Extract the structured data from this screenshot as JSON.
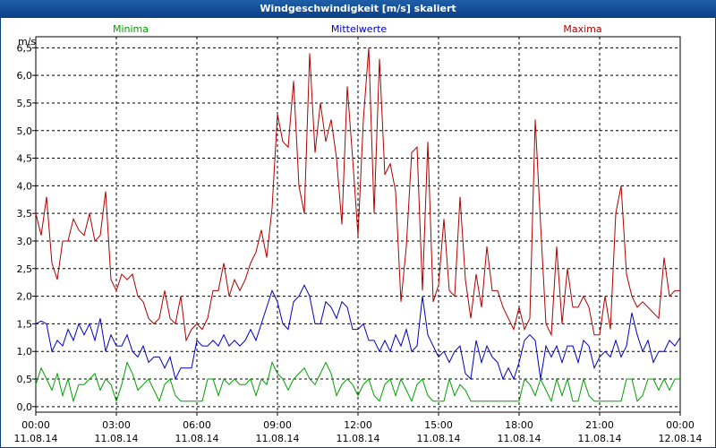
{
  "window": {
    "title": "Windgeschwindigkeit [m/s] skaliert"
  },
  "chart_data": {
    "type": "line",
    "title": "Windgeschwindigkeit [m/s] skaliert",
    "ylabel": "m/s",
    "xlabel": "",
    "ylim": [
      -0.1,
      6.7
    ],
    "grid": true,
    "yticks": [
      "0,0",
      "0,5",
      "1,0",
      "1,5",
      "2,0",
      "2,5",
      "3,0",
      "3,5",
      "4,0",
      "4,5",
      "5,0",
      "5,5",
      "6,0",
      "6,5"
    ],
    "yticks_values": [
      0,
      0.5,
      1,
      1.5,
      2,
      2.5,
      3,
      3.5,
      4,
      4.5,
      5,
      5.5,
      6,
      6.5
    ],
    "xticks": [
      {
        "time": "00:00",
        "date": "11.08.14"
      },
      {
        "time": "03:00",
        "date": "11.08.14"
      },
      {
        "time": "06:00",
        "date": "11.08.14"
      },
      {
        "time": "09:00",
        "date": "11.08.14"
      },
      {
        "time": "12:00",
        "date": "11.08.14"
      },
      {
        "time": "15:00",
        "date": "11.08.14"
      },
      {
        "time": "18:00",
        "date": "11.08.14"
      },
      {
        "time": "21:00",
        "date": "11.08.14"
      },
      {
        "time": "00:00",
        "date": "12.08.14"
      }
    ],
    "x_hours_range": [
      0,
      24
    ],
    "series": [
      {
        "name": "Minima",
        "color": "#00a000",
        "x": [
          0,
          0.2,
          0.4,
          0.6,
          0.8,
          1,
          1.2,
          1.4,
          1.6,
          1.8,
          2,
          2.2,
          2.4,
          2.6,
          2.8,
          3,
          3.2,
          3.4,
          3.6,
          3.8,
          4,
          4.2,
          4.4,
          4.6,
          4.8,
          5,
          5.2,
          5.4,
          5.6,
          5.8,
          6,
          6.2,
          6.4,
          6.6,
          6.8,
          7,
          7.2,
          7.4,
          7.6,
          7.8,
          8,
          8.2,
          8.4,
          8.6,
          8.8,
          9,
          9.2,
          9.4,
          9.6,
          9.8,
          10,
          10.2,
          10.4,
          10.6,
          10.8,
          11,
          11.2,
          11.4,
          11.6,
          11.8,
          12,
          12.2,
          12.4,
          12.6,
          12.8,
          13,
          13.2,
          13.4,
          13.6,
          13.8,
          14,
          14.2,
          14.4,
          14.6,
          14.8,
          15,
          15.2,
          15.4,
          15.6,
          15.8,
          16,
          16.2,
          16.4,
          16.6,
          16.8,
          17,
          17.2,
          17.4,
          17.6,
          17.8,
          18,
          18.2,
          18.4,
          18.6,
          18.8,
          19,
          19.2,
          19.4,
          19.6,
          19.8,
          20,
          20.2,
          20.4,
          20.6,
          20.8,
          21,
          21.2,
          21.4,
          21.6,
          21.8,
          22,
          22.2,
          22.4,
          22.6,
          22.8,
          23,
          23.2,
          23.4,
          23.6,
          23.8,
          24
        ],
        "values": [
          0.4,
          0.7,
          0.5,
          0.3,
          0.6,
          0.2,
          0.5,
          0.1,
          0.4,
          0.4,
          0.5,
          0.6,
          0.3,
          0.5,
          0.4,
          0.1,
          0.4,
          0.8,
          0.6,
          0.3,
          0.4,
          0.5,
          0.3,
          0.1,
          0.4,
          0.5,
          0.2,
          0.1,
          0.1,
          0.1,
          0.1,
          0.1,
          0.5,
          0.5,
          0.2,
          0.5,
          0.4,
          0.5,
          0.4,
          0.4,
          0.5,
          0.2,
          0.5,
          0.4,
          0.8,
          0.6,
          0.5,
          0.3,
          0.5,
          0.6,
          0.7,
          0.5,
          0.4,
          0.6,
          0.8,
          0.6,
          0.2,
          0.4,
          0.5,
          0.4,
          0.2,
          0.4,
          0.5,
          0.2,
          0.1,
          0.4,
          0.5,
          0.2,
          0.5,
          0.3,
          0.1,
          0.4,
          0.5,
          0.2,
          0.1,
          0.1,
          0.1,
          0.5,
          0.2,
          0.4,
          0.3,
          0.1,
          0.1,
          0.1,
          0.1,
          0.1,
          0.1,
          0.1,
          0.1,
          0.1,
          0.1,
          0.5,
          0.4,
          0.2,
          0.5,
          0.3,
          0.1,
          0.5,
          0.2,
          0.5,
          0.1,
          0.1,
          0.5,
          0.2,
          0.1,
          0.1,
          0.1,
          0.1,
          0.1,
          0.1,
          0.5,
          0.5,
          0.1,
          0.2,
          0.5,
          0.5,
          0.3,
          0.5,
          0.3,
          0.5,
          0.5
        ]
      },
      {
        "name": "Mittelwerte",
        "color": "#0000c0",
        "x": [
          0,
          0.2,
          0.4,
          0.6,
          0.8,
          1,
          1.2,
          1.4,
          1.6,
          1.8,
          2,
          2.2,
          2.4,
          2.6,
          2.8,
          3,
          3.2,
          3.4,
          3.6,
          3.8,
          4,
          4.2,
          4.4,
          4.6,
          4.8,
          5,
          5.2,
          5.4,
          5.6,
          5.8,
          6,
          6.2,
          6.4,
          6.6,
          6.8,
          7,
          7.2,
          7.4,
          7.6,
          7.8,
          8,
          8.2,
          8.4,
          8.6,
          8.8,
          9,
          9.2,
          9.4,
          9.6,
          9.8,
          10,
          10.2,
          10.4,
          10.6,
          10.8,
          11,
          11.2,
          11.4,
          11.6,
          11.8,
          12,
          12.2,
          12.4,
          12.6,
          12.8,
          13,
          13.2,
          13.4,
          13.6,
          13.8,
          14,
          14.2,
          14.4,
          14.6,
          14.8,
          15,
          15.2,
          15.4,
          15.6,
          15.8,
          16,
          16.2,
          16.4,
          16.6,
          16.8,
          17,
          17.2,
          17.4,
          17.6,
          17.8,
          18,
          18.2,
          18.4,
          18.6,
          18.8,
          19,
          19.2,
          19.4,
          19.6,
          19.8,
          20,
          20.2,
          20.4,
          20.6,
          20.8,
          21,
          21.2,
          21.4,
          21.6,
          21.8,
          22,
          22.2,
          22.4,
          22.6,
          22.8,
          23,
          23.2,
          23.4,
          23.6,
          23.8,
          24
        ],
        "values": [
          1.5,
          1.55,
          1.5,
          1.0,
          1.2,
          1.1,
          1.4,
          1.2,
          1.5,
          1.3,
          1.5,
          1.2,
          1.6,
          1.0,
          1.3,
          1.1,
          1.1,
          1.3,
          1.0,
          0.9,
          1.1,
          0.8,
          0.9,
          0.9,
          0.7,
          0.9,
          0.5,
          0.7,
          0.7,
          0.7,
          1.2,
          1.1,
          1.1,
          1.2,
          1.1,
          1.3,
          1.1,
          1.2,
          1.1,
          1.2,
          1.4,
          1.2,
          1.5,
          1.8,
          2.1,
          1.9,
          1.5,
          1.4,
          1.9,
          2.0,
          2.2,
          2.0,
          1.5,
          1.5,
          1.9,
          1.8,
          1.6,
          1.9,
          1.8,
          1.4,
          1.4,
          1.5,
          1.2,
          1.2,
          1.0,
          1.2,
          1.0,
          1.3,
          1.1,
          1.4,
          1.0,
          1.1,
          2.0,
          1.3,
          1.1,
          0.9,
          1.0,
          0.8,
          1.0,
          1.1,
          0.6,
          0.5,
          1.2,
          0.8,
          1.1,
          0.9,
          0.8,
          0.5,
          0.7,
          0.5,
          0.8,
          1.2,
          1.3,
          1.2,
          0.5,
          1.1,
          0.9,
          1.1,
          0.8,
          1.1,
          1.1,
          0.8,
          1.2,
          1.1,
          0.7,
          0.9,
          1.0,
          0.9,
          1.2,
          0.9,
          1.1,
          1.7,
          1.3,
          1.0,
          1.2,
          0.8,
          1.0,
          1.0,
          1.2,
          1.1,
          1.25
        ]
      },
      {
        "name": "Maxima",
        "color": "#b00000",
        "x": [
          0,
          0.2,
          0.4,
          0.6,
          0.8,
          1,
          1.2,
          1.4,
          1.6,
          1.8,
          2,
          2.2,
          2.4,
          2.6,
          2.8,
          3,
          3.2,
          3.4,
          3.6,
          3.8,
          4,
          4.2,
          4.4,
          4.6,
          4.8,
          5,
          5.2,
          5.4,
          5.6,
          5.8,
          6,
          6.2,
          6.4,
          6.6,
          6.8,
          7,
          7.2,
          7.4,
          7.6,
          7.8,
          8,
          8.2,
          8.4,
          8.6,
          8.8,
          9,
          9.2,
          9.4,
          9.6,
          9.8,
          10,
          10.2,
          10.4,
          10.6,
          10.8,
          11,
          11.2,
          11.4,
          11.6,
          11.8,
          12,
          12.2,
          12.4,
          12.6,
          12.8,
          13,
          13.2,
          13.4,
          13.6,
          13.8,
          14,
          14.2,
          14.4,
          14.6,
          14.8,
          15,
          15.2,
          15.4,
          15.6,
          15.8,
          16,
          16.2,
          16.4,
          16.6,
          16.8,
          17,
          17.2,
          17.4,
          17.6,
          17.8,
          18,
          18.2,
          18.4,
          18.6,
          18.8,
          19,
          19.2,
          19.4,
          19.6,
          19.8,
          20,
          20.2,
          20.4,
          20.6,
          20.8,
          21,
          21.2,
          21.4,
          21.6,
          21.8,
          22,
          22.2,
          22.4,
          22.6,
          22.8,
          23,
          23.2,
          23.4,
          23.6,
          23.8,
          24
        ],
        "values": [
          3.5,
          3.1,
          3.8,
          2.6,
          2.3,
          3.0,
          3.0,
          3.4,
          3.2,
          3.1,
          3.5,
          3.0,
          3.1,
          3.9,
          2.3,
          2.1,
          2.4,
          2.3,
          2.4,
          2.0,
          1.9,
          1.6,
          1.5,
          1.6,
          2.1,
          1.6,
          1.5,
          2.0,
          1.2,
          1.4,
          1.5,
          1.4,
          1.6,
          2.1,
          2.1,
          2.6,
          2.0,
          2.3,
          2.1,
          2.3,
          2.6,
          2.8,
          3.2,
          2.7,
          3.6,
          5.3,
          4.8,
          4.7,
          5.9,
          4.0,
          3.5,
          6.4,
          4.6,
          5.5,
          4.8,
          5.2,
          4.5,
          3.3,
          5.8,
          4.5,
          3.1,
          5.2,
          6.5,
          3.5,
          6.3,
          4.2,
          4.4,
          3.9,
          1.9,
          2.9,
          4.6,
          4.7,
          2.1,
          4.8,
          1.9,
          2.2,
          3.4,
          2.1,
          2.0,
          3.8,
          2.3,
          1.6,
          2.4,
          1.8,
          2.9,
          2.1,
          2.1,
          1.8,
          1.6,
          1.4,
          1.8,
          1.4,
          1.6,
          5.2,
          3.3,
          1.5,
          1.3,
          2.9,
          1.5,
          2.5,
          1.8,
          1.8,
          2.0,
          1.8,
          1.3,
          1.3,
          2.0,
          1.4,
          3.5,
          4.0,
          2.4,
          2.0,
          1.8,
          1.9,
          1.8,
          1.7,
          1.6,
          2.7,
          2.0,
          2.1,
          2.1
        ]
      }
    ]
  }
}
